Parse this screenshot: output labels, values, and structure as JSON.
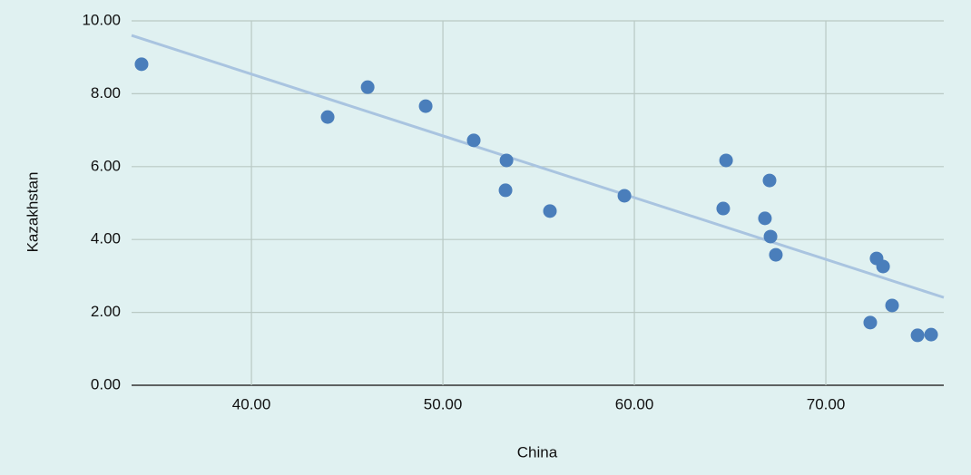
{
  "chart_data": {
    "type": "scatter",
    "x_label": "China",
    "y_label": "Kazakhstan",
    "xlim": [
      33.74,
      76.16
    ],
    "ylim": [
      0,
      10
    ],
    "xticks": [
      {
        "value": 40,
        "label": "40.00"
      },
      {
        "value": 50,
        "label": "50.00"
      },
      {
        "value": 60,
        "label": "60.00"
      },
      {
        "value": 70,
        "label": "70.00"
      }
    ],
    "yticks": [
      {
        "value": 0,
        "label": "0.00"
      },
      {
        "value": 2,
        "label": "2.00"
      },
      {
        "value": 4,
        "label": "4.00"
      },
      {
        "value": 6,
        "label": "6.00"
      },
      {
        "value": 8,
        "label": "8.00"
      },
      {
        "value": 10,
        "label": "10.00"
      }
    ],
    "grid": true,
    "color": "#4a7ebb",
    "x": [
      34.26,
      43.98,
      46.07,
      49.1,
      51.61,
      53.32,
      53.27,
      55.59,
      59.48,
      64.79,
      64.64,
      67.06,
      66.82,
      67.11,
      67.39,
      72.65,
      72.99,
      72.32,
      73.46,
      74.79,
      75.5
    ],
    "values": [
      8.81,
      7.36,
      8.18,
      7.66,
      6.72,
      6.17,
      5.35,
      4.78,
      5.2,
      6.17,
      4.85,
      5.62,
      4.58,
      4.08,
      3.58,
      3.48,
      3.26,
      1.72,
      2.19,
      1.37,
      1.39
    ],
    "trendline": {
      "color": "#a9c4e0",
      "x": [
        33.74,
        76.16
      ],
      "values": [
        9.6,
        2.41
      ]
    }
  }
}
